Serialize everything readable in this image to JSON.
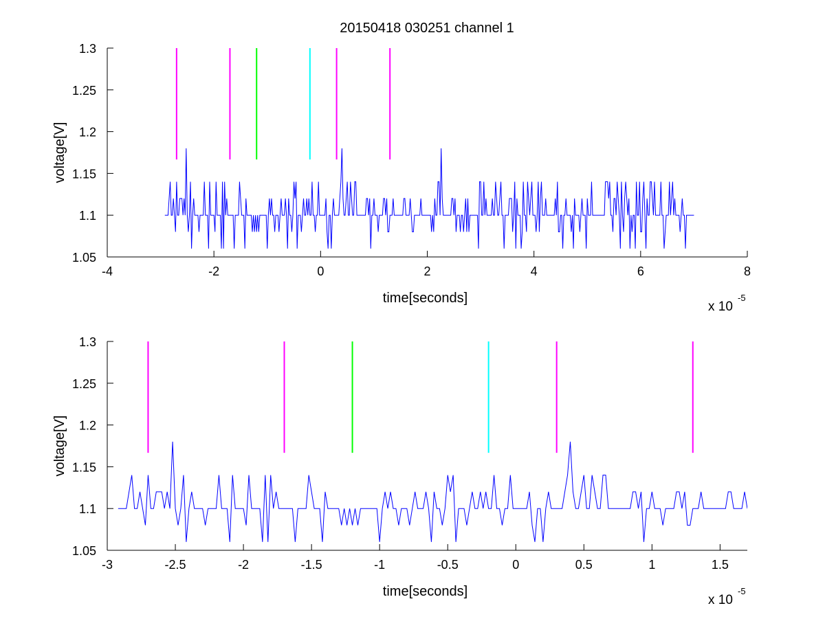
{
  "figure": {
    "title": "20150418 030251 channel 1"
  },
  "colors": {
    "signal": "#0000ff",
    "marker_magenta": "#ff00ff",
    "marker_green": "#00ff00",
    "marker_cyan": "#00ffff",
    "axes": "#000000",
    "background": "#ffffff"
  },
  "chart_data": [
    {
      "type": "line",
      "title": "20150418 030251 channel 1",
      "xlabel": "time[seconds]",
      "ylabel": "voltage[V]",
      "x_exponent_label": "x 10",
      "x_exponent": "-5",
      "x_scale": 1e-05,
      "xlim": [
        -4,
        8
      ],
      "ylim": [
        1.05,
        1.3
      ],
      "xticks": [
        "-4",
        "-2",
        "0",
        "2",
        "4",
        "6",
        "8"
      ],
      "yticks": [
        "1.05",
        "1.1",
        "1.15",
        "1.2",
        "1.25",
        "1.3"
      ],
      "grid": false,
      "legend": "none",
      "markers": [
        {
          "x": -2.7,
          "color": "magenta",
          "ymin": 1.1667,
          "ymax": 1.3
        },
        {
          "x": -1.7,
          "color": "magenta",
          "ymin": 1.1667,
          "ymax": 1.3
        },
        {
          "x": -1.2,
          "color": "green",
          "ymin": 1.1667,
          "ymax": 1.3
        },
        {
          "x": -0.2,
          "color": "cyan",
          "ymin": 1.1667,
          "ymax": 1.3
        },
        {
          "x": 0.3,
          "color": "magenta",
          "ymin": 1.1667,
          "ymax": 1.3
        },
        {
          "x": 1.3,
          "color": "magenta",
          "ymin": 1.1667,
          "ymax": 1.3
        }
      ],
      "series": [
        {
          "color": "blue",
          "x_range": [
            -2.92,
            7.0
          ],
          "baseline": 1.1,
          "levels": [
            1.06,
            1.08,
            1.1,
            1.12,
            1.14,
            1.18
          ],
          "spikes": [
            {
              "x": -2.52,
              "y": 1.18
            },
            {
              "x": 0.4,
              "y": 1.18
            },
            {
              "x": 2.27,
              "y": 1.18
            }
          ]
        }
      ]
    },
    {
      "type": "line",
      "title": "",
      "xlabel": "time[seconds]",
      "ylabel": "voltage[V]",
      "x_exponent_label": "x 10",
      "x_exponent": "-5",
      "x_scale": 1e-05,
      "xlim": [
        -3.0,
        1.7
      ],
      "ylim": [
        1.05,
        1.3
      ],
      "xticks": [
        "-3",
        "-2.5",
        "-2",
        "-1.5",
        "-1",
        "-0.5",
        "0",
        "0.5",
        "1",
        "1.5"
      ],
      "yticks": [
        "1.05",
        "1.1",
        "1.15",
        "1.2",
        "1.25",
        "1.3"
      ],
      "grid": false,
      "legend": "none",
      "markers": [
        {
          "x": -2.7,
          "color": "magenta",
          "ymin": 1.1667,
          "ymax": 1.3
        },
        {
          "x": -1.7,
          "color": "magenta",
          "ymin": 1.1667,
          "ymax": 1.3
        },
        {
          "x": -1.2,
          "color": "green",
          "ymin": 1.1667,
          "ymax": 1.3
        },
        {
          "x": -0.2,
          "color": "cyan",
          "ymin": 1.1667,
          "ymax": 1.3
        },
        {
          "x": 0.3,
          "color": "magenta",
          "ymin": 1.1667,
          "ymax": 1.3
        },
        {
          "x": 1.3,
          "color": "magenta",
          "ymin": 1.1667,
          "ymax": 1.3
        }
      ],
      "series": [
        {
          "color": "blue",
          "x_range": [
            -2.92,
            1.7
          ],
          "baseline": 1.1,
          "levels": [
            1.06,
            1.08,
            1.1,
            1.12,
            1.14,
            1.18
          ],
          "spikes": [
            {
              "x": -2.52,
              "y": 1.18
            },
            {
              "x": 0.4,
              "y": 1.18
            }
          ]
        }
      ]
    }
  ]
}
